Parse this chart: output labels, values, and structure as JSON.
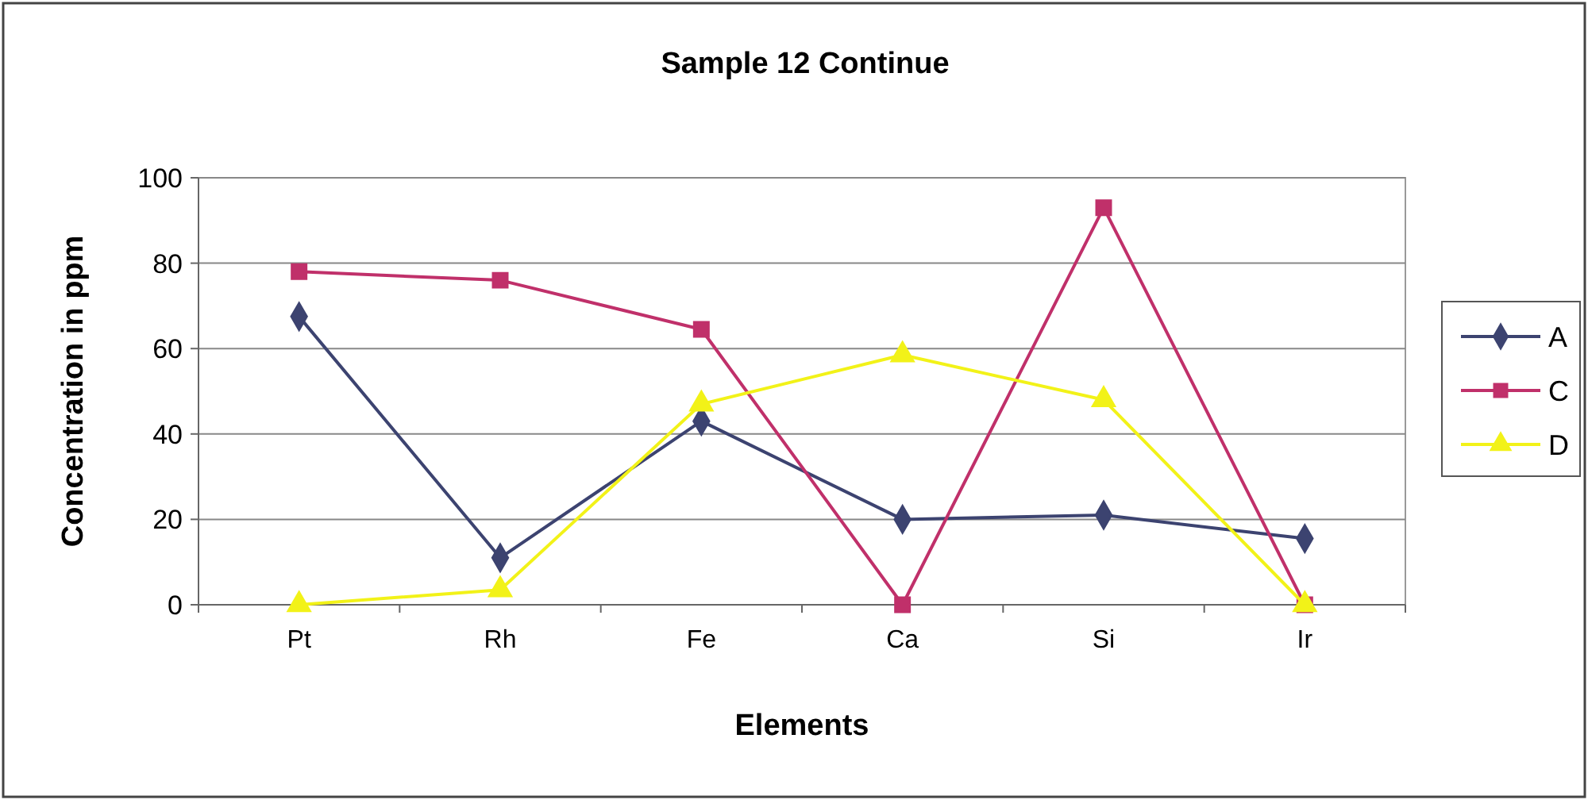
{
  "chart_data": {
    "type": "line",
    "title": "Sample 12 Continue",
    "xlabel": "Elements",
    "ylabel": "Concentration in ppm",
    "categories": [
      "Pt",
      "Rh",
      "Fe",
      "Ca",
      "Si",
      "Ir"
    ],
    "ylim": [
      0,
      100
    ],
    "yticks": [
      0,
      20,
      40,
      60,
      80,
      100
    ],
    "grid": "y",
    "legend": "right",
    "series": [
      {
        "name": "A",
        "color": "#3c4370",
        "marker": "diamond",
        "values": [
          67.5,
          11,
          43,
          20,
          21,
          15.5
        ]
      },
      {
        "name": "C",
        "color": "#c0306a",
        "marker": "square",
        "values": [
          78,
          76,
          64.5,
          0,
          93,
          0
        ]
      },
      {
        "name": "D",
        "color": "#f2f218",
        "marker": "triangle",
        "values": [
          0,
          3.5,
          47,
          58.5,
          48,
          0
        ]
      }
    ]
  }
}
